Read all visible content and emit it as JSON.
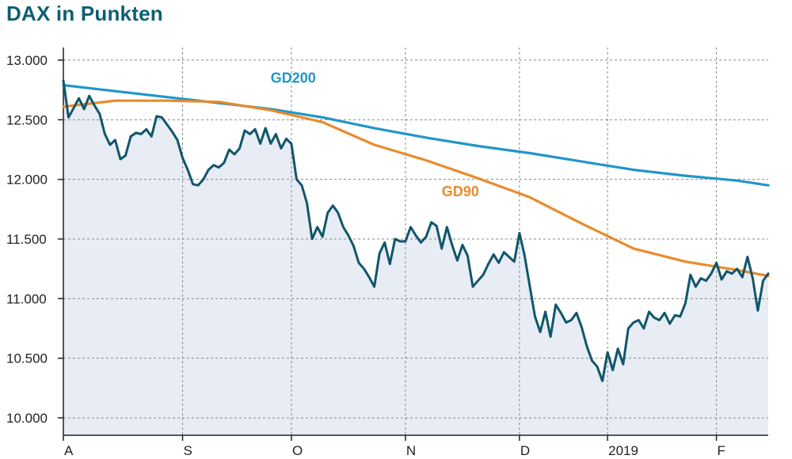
{
  "chart_data": {
    "type": "line",
    "title": "DAX in Punkten",
    "ylim": [
      10000,
      13000
    ],
    "y_ticks": [
      {
        "value": 10000,
        "label": "10.000"
      },
      {
        "value": 10500,
        "label": "10.500"
      },
      {
        "value": 11000,
        "label": "11.000"
      },
      {
        "value": 11500,
        "label": "11.500"
      },
      {
        "value": 12000,
        "label": "12.000"
      },
      {
        "value": 12500,
        "label": "12.500"
      },
      {
        "value": 13000,
        "label": "13.000"
      }
    ],
    "x_domain": [
      0,
      136
    ],
    "x_ticks": [
      {
        "value": 0,
        "label": "A"
      },
      {
        "value": 23,
        "label": "S"
      },
      {
        "value": 44,
        "label": "O"
      },
      {
        "value": 66,
        "label": "N"
      },
      {
        "value": 88,
        "label": "D"
      },
      {
        "value": 105,
        "label": "2019"
      },
      {
        "value": 126,
        "label": "F"
      }
    ],
    "grid": true,
    "colors": {
      "title": "#0d5f73",
      "dax": "#10566b",
      "area": "#e8ecf4",
      "gd200": "#2196c8",
      "gd90": "#ea8a2c",
      "grid": "#888888",
      "axis": "#222222"
    },
    "series": [
      {
        "name": "GD200",
        "label_at": {
          "x": 40,
          "y": 12810
        },
        "x": [
          0,
          10,
          20,
          30,
          40,
          50,
          60,
          70,
          80,
          90,
          100,
          110,
          120,
          130,
          136
        ],
        "values": [
          12790,
          12740,
          12690,
          12640,
          12590,
          12520,
          12430,
          12350,
          12280,
          12220,
          12150,
          12080,
          12030,
          11990,
          11950
        ]
      },
      {
        "name": "GD90",
        "label_at": {
          "x": 73,
          "y": 11860
        },
        "x": [
          0,
          10,
          20,
          30,
          40,
          50,
          60,
          70,
          80,
          90,
          100,
          110,
          120,
          130,
          136
        ],
        "values": [
          12610,
          12660,
          12660,
          12650,
          12580,
          12480,
          12290,
          12160,
          12010,
          11850,
          11630,
          11420,
          11310,
          11240,
          11190
        ]
      },
      {
        "name": "",
        "role": "dax",
        "x": [
          0,
          1,
          2,
          3,
          4,
          5,
          6,
          7,
          8,
          9,
          10,
          11,
          12,
          13,
          14,
          15,
          16,
          17,
          18,
          19,
          20,
          21,
          22,
          23,
          24,
          25,
          26,
          27,
          28,
          29,
          30,
          31,
          32,
          33,
          34,
          35,
          36,
          37,
          38,
          39,
          40,
          41,
          42,
          43,
          44,
          45,
          46,
          47,
          48,
          49,
          50,
          51,
          52,
          53,
          54,
          55,
          56,
          57,
          58,
          59,
          60,
          61,
          62,
          63,
          64,
          65,
          66,
          67,
          68,
          69,
          70,
          71,
          72,
          73,
          74,
          75,
          76,
          77,
          78,
          79,
          80,
          81,
          82,
          83,
          84,
          85,
          86,
          87,
          88,
          89,
          90,
          91,
          92,
          93,
          94,
          95,
          96,
          97,
          98,
          99,
          100,
          101,
          102,
          103,
          104,
          105,
          106,
          107,
          108,
          109,
          110,
          111,
          112,
          113,
          114,
          115,
          116,
          117,
          118,
          119,
          120,
          121,
          122,
          123,
          124,
          125,
          126,
          127,
          128,
          129,
          130,
          131,
          132,
          133,
          134,
          135,
          136
        ],
        "values": [
          12830,
          12520,
          12600,
          12680,
          12590,
          12700,
          12620,
          12550,
          12380,
          12290,
          12330,
          12170,
          12200,
          12360,
          12390,
          12380,
          12420,
          12360,
          12530,
          12520,
          12460,
          12400,
          12330,
          12180,
          12080,
          11960,
          11950,
          12000,
          12080,
          12120,
          12100,
          12140,
          12250,
          12210,
          12260,
          12410,
          12380,
          12420,
          12300,
          12430,
          12300,
          12380,
          12260,
          12340,
          12300,
          12000,
          11950,
          11800,
          11500,
          11600,
          11520,
          11720,
          11780,
          11720,
          11600,
          11530,
          11440,
          11300,
          11250,
          11180,
          11100,
          11380,
          11470,
          11290,
          11500,
          11480,
          11480,
          11600,
          11530,
          11470,
          11520,
          11640,
          11610,
          11420,
          11600,
          11450,
          11320,
          11450,
          11360,
          11100,
          11150,
          11200,
          11290,
          11370,
          11300,
          11390,
          11350,
          11310,
          11550,
          11360,
          11100,
          10850,
          10720,
          10890,
          10680,
          10950,
          10880,
          10800,
          10820,
          10880,
          10760,
          10600,
          10480,
          10430,
          10310,
          10550,
          10400,
          10580,
          10450,
          10750,
          10800,
          10820,
          10750,
          10890,
          10840,
          10820,
          10880,
          10790,
          10860,
          10850,
          10960,
          11200,
          11100,
          11170,
          11150,
          11210,
          11300,
          11160,
          11230,
          11210,
          11250,
          11180,
          11350,
          11170,
          10900,
          11150,
          11210
        ]
      }
    ]
  }
}
